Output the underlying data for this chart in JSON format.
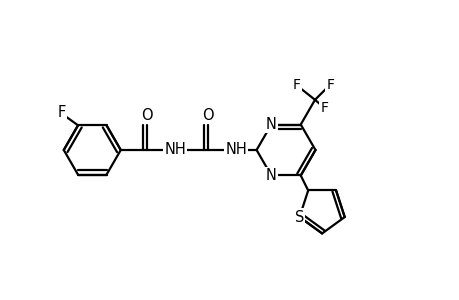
{
  "background_color": "#ffffff",
  "line_color": "#000000",
  "line_width": 1.6,
  "font_size": 10.5,
  "figsize": [
    4.6,
    3.0
  ],
  "dpi": 100,
  "xlim": [
    0,
    9.5
  ],
  "ylim": [
    0,
    6.2
  ]
}
